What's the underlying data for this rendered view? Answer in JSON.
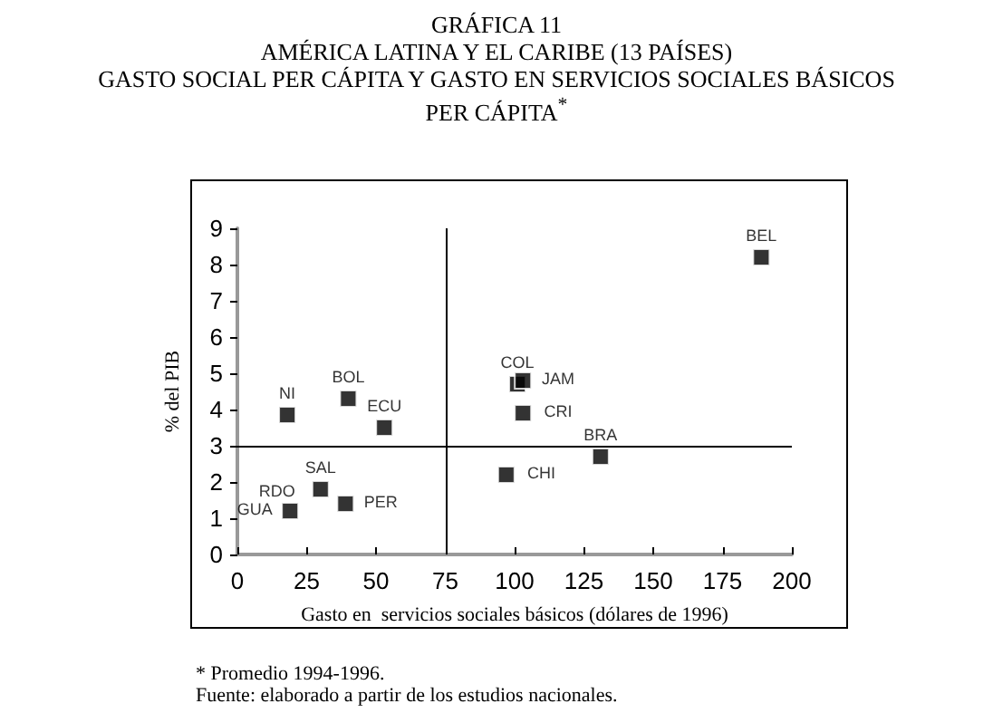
{
  "chart_data": {
    "type": "scatter",
    "title": "GRÁFICA 11",
    "subtitle": "AMÉRICA LATINA Y EL CARIBE (13 PAÍSES)\nGASTO SOCIAL PER CÁPITA Y GASTO EN SERVICIOS SOCIALES BÁSICOS\nPER CÁPITA$^{*}$",
    "xlabel": "Gasto en  servicios sociales básicos (dólares de 1996)",
    "ylabel": "% del PIB",
    "x": [
      18,
      40,
      53,
      30,
      19,
      39,
      97,
      101,
      103,
      103,
      131,
      189
    ],
    "series": [
      {
        "color": "#000000",
        "values": [
          3.85,
          4.3,
          3.5,
          1.8,
          1.2,
          1.4,
          2.2,
          4.7,
          4.8,
          3.9,
          2.7,
          8.2
        ]
      }
    ],
    "marker": "square",
    "xlim": [
      0,
      200
    ],
    "xticks": [
      0,
      25,
      50,
      75,
      100,
      125,
      150,
      175,
      200
    ],
    "ylim": [
      0,
      9
    ],
    "yticks": [
      0,
      1,
      2,
      3,
      4,
      5,
      6,
      7,
      8,
      9
    ],
    "grid": false,
    "ref_lines": [
      {
        "axis": "x",
        "value": 75,
        "color": "#000000"
      },
      {
        "axis": "y",
        "value": 3,
        "color": "#000000"
      }
    ],
    "annotations": [
      {
        "text": "NI",
        "x": 18,
        "y": 3.85
      },
      {
        "text": "BOL",
        "x": 40,
        "y": 4.3
      },
      {
        "text": "ECU",
        "x": 53,
        "y": 3.5
      },
      {
        "text": "SAL",
        "x": 30,
        "y": 1.8
      },
      {
        "text": "RDO",
        "x": 27,
        "y": 1.7
      },
      {
        "text": "GUA",
        "x": 19,
        "y": 1.2
      },
      {
        "text": "PER",
        "x": 39,
        "y": 1.4
      },
      {
        "text": "CHI",
        "x": 97,
        "y": 2.2
      },
      {
        "text": "COL",
        "x": 101,
        "y": 4.7
      },
      {
        "text": "JAM",
        "x": 103,
        "y": 4.8
      },
      {
        "text": "CRI",
        "x": 103,
        "y": 3.9
      },
      {
        "text": "BRA",
        "x": 131,
        "y": 2.7
      },
      {
        "text": "BEL",
        "x": 189,
        "y": 8.2
      },
      "* Promedio 1994-1996.",
      "Fuente: elaborado a partir de los estudios nacionales."
    ]
  }
}
